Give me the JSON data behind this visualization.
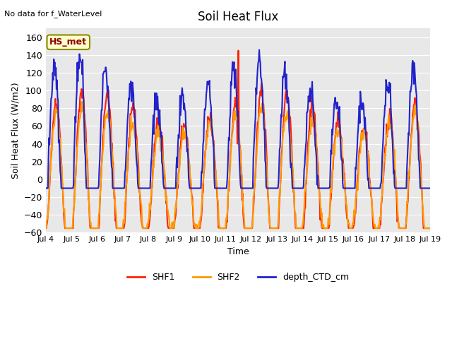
{
  "title": "Soil Heat Flux",
  "ylabel": "Soil Heat Flux (W/m2)",
  "xlabel": "Time",
  "no_data_text": "No data for f_WaterLevel",
  "station_label": "HS_met",
  "ylim": [
    -60,
    170
  ],
  "yticks": [
    -60,
    -40,
    -20,
    0,
    20,
    40,
    60,
    80,
    100,
    120,
    140,
    160
  ],
  "xtick_labels": [
    "Jul 4",
    "Jul 5",
    "Jul 6",
    "Jul 7",
    "Jul 8",
    "Jul 9",
    "Jul 10",
    "Jul 11",
    "Jul 12",
    "Jul 13",
    "Jul 14",
    "Jul 15",
    "Jul 16",
    "Jul 17",
    "Jul 18",
    "Jul 19"
  ],
  "shf1_color": "#FF2200",
  "shf2_color": "#FF9900",
  "depth_color": "#2222CC",
  "bg_color": "#E8E8E8",
  "legend_entries": [
    "SHF1",
    "SHF2",
    "depth_CTD_cm"
  ],
  "line_width": 1.5
}
